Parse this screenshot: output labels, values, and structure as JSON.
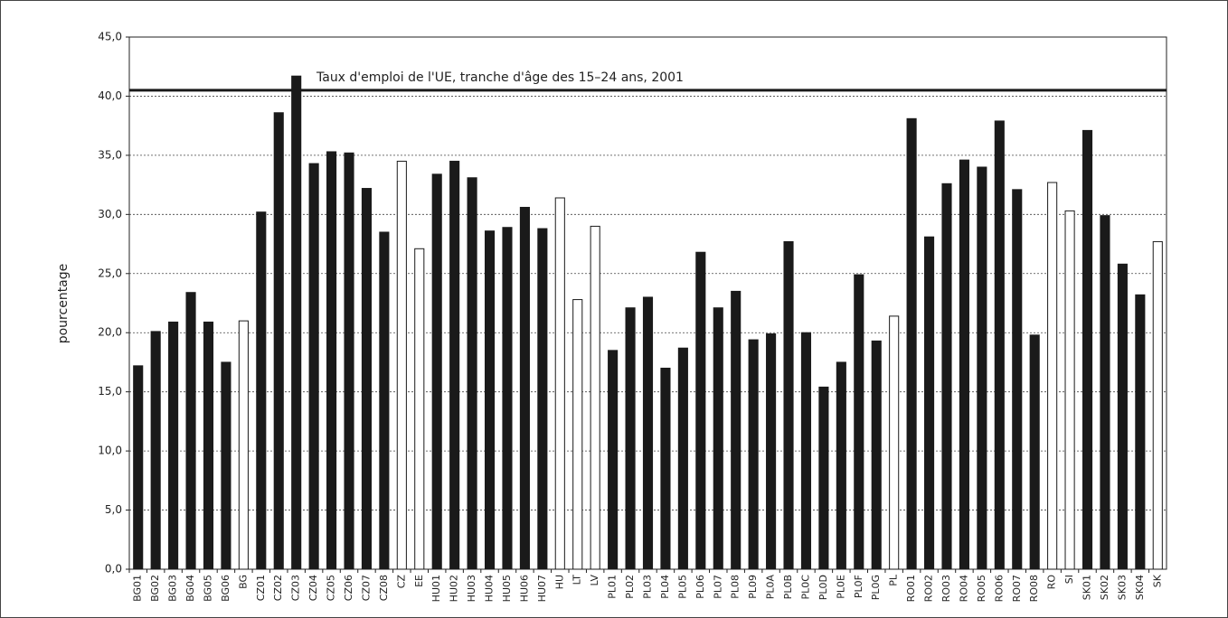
{
  "chart_data": {
    "type": "bar",
    "y_axis_label": "pourcentage",
    "reference_line": {
      "value": 40.5,
      "label": "Taux d'emploi de l'UE, tranche d'âge des 15–24 ans, 2001",
      "color": "#1a1a1a"
    },
    "categories": [
      "BG01",
      "BG02",
      "BG03",
      "BG04",
      "BG05",
      "BG06",
      "BG",
      "CZ01",
      "CZ02",
      "CZ03",
      "CZ04",
      "CZ05",
      "CZ06",
      "CZ07",
      "CZ08",
      "CZ",
      "EE",
      "HU01",
      "HU02",
      "HU03",
      "HU04",
      "HU05",
      "HU06",
      "HU07",
      "HU",
      "LT",
      "LV",
      "PL01",
      "PL02",
      "PL03",
      "PL04",
      "PL05",
      "PL06",
      "PL07",
      "PL08",
      "PL09",
      "PL0A",
      "PL0B",
      "PL0C",
      "PL0D",
      "PL0E",
      "PL0F",
      "PL0G",
      "PL",
      "RO01",
      "RO02",
      "RO03",
      "RO04",
      "RO05",
      "RO06",
      "RO07",
      "RO08",
      "RO",
      "SI",
      "SK01",
      "SK02",
      "SK03",
      "SK04",
      "SK"
    ],
    "values": [
      17.2,
      20.1,
      20.9,
      23.4,
      20.9,
      17.5,
      21.0,
      30.2,
      38.6,
      41.7,
      34.3,
      35.3,
      35.2,
      32.2,
      28.5,
      34.5,
      27.1,
      33.4,
      34.5,
      33.1,
      28.6,
      28.9,
      30.6,
      28.8,
      31.4,
      22.8,
      29.0,
      18.5,
      22.1,
      23.0,
      17.0,
      18.7,
      26.8,
      22.1,
      23.5,
      19.4,
      19.9,
      27.7,
      20.0,
      15.4,
      17.5,
      24.9,
      19.3,
      21.4,
      38.1,
      28.1,
      32.6,
      34.6,
      34.0,
      37.9,
      32.1,
      19.8,
      32.7,
      30.3,
      37.1,
      29.9,
      25.8,
      23.2,
      27.7
    ],
    "colors": [
      "#1a1a1a",
      "#1a1a1a",
      "#1a1a1a",
      "#1a1a1a",
      "#1a1a1a",
      "#1a1a1a",
      "#ffffff",
      "#1a1a1a",
      "#1a1a1a",
      "#1a1a1a",
      "#1a1a1a",
      "#1a1a1a",
      "#1a1a1a",
      "#1a1a1a",
      "#1a1a1a",
      "#ffffff",
      "#ffffff",
      "#1a1a1a",
      "#1a1a1a",
      "#1a1a1a",
      "#1a1a1a",
      "#1a1a1a",
      "#1a1a1a",
      "#1a1a1a",
      "#ffffff",
      "#ffffff",
      "#ffffff",
      "#1a1a1a",
      "#1a1a1a",
      "#1a1a1a",
      "#1a1a1a",
      "#1a1a1a",
      "#1a1a1a",
      "#1a1a1a",
      "#1a1a1a",
      "#1a1a1a",
      "#1a1a1a",
      "#1a1a1a",
      "#1a1a1a",
      "#1a1a1a",
      "#1a1a1a",
      "#1a1a1a",
      "#1a1a1a",
      "#ffffff",
      "#1a1a1a",
      "#1a1a1a",
      "#1a1a1a",
      "#1a1a1a",
      "#1a1a1a",
      "#1a1a1a",
      "#1a1a1a",
      "#1a1a1a",
      "#ffffff",
      "#ffffff",
      "#1a1a1a",
      "#1a1a1a",
      "#1a1a1a",
      "#1a1a1a",
      "#ffffff"
    ],
    "ylim": [
      0,
      45
    ],
    "yticks": [
      {
        "value": 0,
        "label": "0,0"
      },
      {
        "value": 5,
        "label": "5,0"
      },
      {
        "value": 10,
        "label": "10,0"
      },
      {
        "value": 15,
        "label": "15,0"
      },
      {
        "value": 20,
        "label": "20,0"
      },
      {
        "value": 25,
        "label": "25,0"
      },
      {
        "value": 30,
        "label": "30,0"
      },
      {
        "value": 35,
        "label": "35,0"
      },
      {
        "value": 40,
        "label": "40,0"
      },
      {
        "value": 45,
        "label": "45,0"
      }
    ],
    "grid": true
  }
}
